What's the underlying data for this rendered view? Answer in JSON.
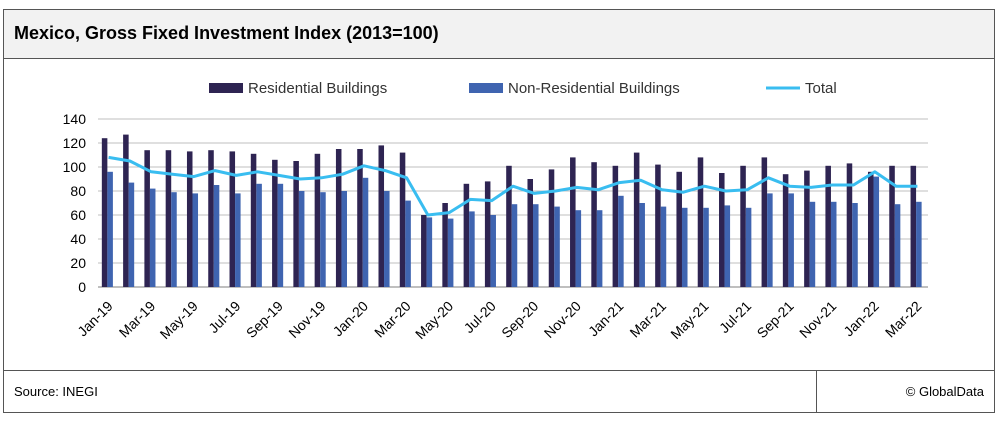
{
  "chart_data": {
    "type": "bar",
    "title": "Mexico, Gross Fixed Investment Index (2013=100)",
    "categories": [
      "Jan-19",
      "Feb-19",
      "Mar-19",
      "Apr-19",
      "May-19",
      "Jun-19",
      "Jul-19",
      "Aug-19",
      "Sep-19",
      "Oct-19",
      "Nov-19",
      "Dec-19",
      "Jan-20",
      "Feb-20",
      "Mar-20",
      "Apr-20",
      "May-20",
      "Jun-20",
      "Jul-20",
      "Aug-20",
      "Sep-20",
      "Oct-20",
      "Nov-20",
      "Dec-20",
      "Jan-21",
      "Feb-21",
      "Mar-21",
      "Apr-21",
      "May-21",
      "Jun-21",
      "Jul-21",
      "Aug-21",
      "Sep-21",
      "Oct-21",
      "Nov-21",
      "Dec-21",
      "Jan-22",
      "Feb-22",
      "Mar-22"
    ],
    "series": [
      {
        "name": "Residential Buildings",
        "type": "bar",
        "color": "#2e2452",
        "values": [
          124,
          127,
          114,
          114,
          113,
          114,
          113,
          111,
          106,
          105,
          111,
          115,
          115,
          118,
          112,
          60,
          70,
          86,
          88,
          101,
          90,
          98,
          108,
          104,
          101,
          112,
          102,
          96,
          108,
          95,
          101,
          108,
          94,
          97,
          101,
          103,
          96,
          101,
          101
        ]
      },
      {
        "name": "Non-Residential Buildings",
        "type": "bar",
        "color": "#3f64b0",
        "values": [
          96,
          87,
          82,
          79,
          78,
          85,
          78,
          86,
          86,
          80,
          79,
          80,
          91,
          80,
          72,
          58,
          57,
          63,
          60,
          69,
          69,
          67,
          64,
          64,
          76,
          70,
          67,
          66,
          66,
          68,
          66,
          78,
          78,
          71,
          71,
          70,
          92,
          69,
          71
        ]
      },
      {
        "name": "Total",
        "type": "line",
        "color": "#39bdf0",
        "values": [
          108,
          105,
          96,
          94,
          92,
          97,
          93,
          96,
          93,
          90,
          91,
          94,
          101,
          97,
          91,
          60,
          62,
          73,
          72,
          84,
          78,
          80,
          83,
          81,
          87,
          89,
          81,
          79,
          84,
          80,
          81,
          91,
          84,
          83,
          85,
          85,
          96,
          84,
          84
        ]
      }
    ],
    "y_ticks": [
      "0",
      "20",
      "40",
      "60",
      "80",
      "100",
      "120",
      "140"
    ],
    "x_tick_labels": [
      "Jan-19",
      "Mar-19",
      "May-19",
      "Jul-19",
      "Sep-19",
      "Nov-19",
      "Jan-20",
      "Mar-20",
      "May-20",
      "Jul-20",
      "Sep-20",
      "Nov-20",
      "Jan-21",
      "Mar-21",
      "May-21",
      "Jul-21",
      "Sep-21",
      "Nov-21",
      "Jan-22",
      "Mar-22"
    ],
    "ylim": [
      0,
      140
    ],
    "grid": true,
    "legend_position": "top"
  },
  "footer": {
    "source": "Source: INEGI",
    "credit": "© GlobalData"
  }
}
